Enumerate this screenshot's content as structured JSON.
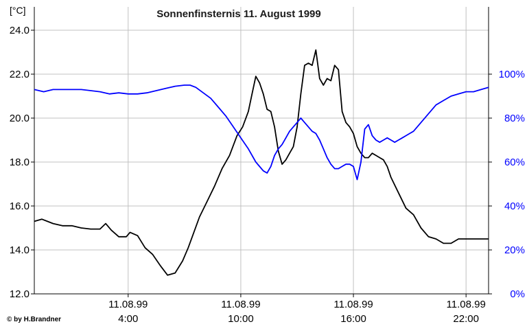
{
  "chart_data": {
    "type": "line",
    "title": "Sonnenfinsternis 11. August 1999",
    "ylabel_left": "[°C]",
    "credit": "© by H.Brandner",
    "x_unit": "hour of day (11.08.99)",
    "xlim": [
      -1,
      23.2
    ],
    "ylim_left": [
      12,
      24
    ],
    "ylim_right": [
      0,
      120
    ],
    "y_ticks_left": [
      "24.0",
      "22.0",
      "20.0",
      "18.0",
      "16.0",
      "14.0",
      "12.0"
    ],
    "y_ticks_right": [
      "100%",
      "80%",
      "60%",
      "40%",
      "20%",
      "0%"
    ],
    "x_ticks": [
      {
        "x": 4,
        "date": "11.08.99",
        "time": "4:00"
      },
      {
        "x": 10,
        "date": "11.08.99",
        "time": "10:00"
      },
      {
        "x": 16,
        "date": "11.08.99",
        "time": "16:00"
      },
      {
        "x": 22,
        "date": "11.08.99",
        "time": "22:00"
      }
    ],
    "grid": true,
    "colors": {
      "temperature": "#000000",
      "humidity": "#0000ff",
      "grid": "#c0c0c0"
    },
    "series": [
      {
        "axis": "left",
        "color": "#000000",
        "x": [
          -1,
          -0.6,
          -0.3,
          0,
          0.5,
          1,
          1.5,
          2,
          2.5,
          2.8,
          3.1,
          3.5,
          3.9,
          4.1,
          4.5,
          4.9,
          5.3,
          5.7,
          6.1,
          6.5,
          6.9,
          7.2,
          7.5,
          7.8,
          8.2,
          8.6,
          9,
          9.4,
          9.8,
          10.1,
          10.4,
          10.6,
          10.8,
          11,
          11.2,
          11.4,
          11.6,
          11.8,
          12,
          12.2,
          12.4,
          12.6,
          12.8,
          13,
          13.2,
          13.4,
          13.6,
          13.8,
          14,
          14.2,
          14.4,
          14.6,
          14.8,
          15,
          15.2,
          15.4,
          15.6,
          15.8,
          16,
          16.2,
          16.4,
          16.6,
          16.8,
          17,
          17.2,
          17.4,
          17.6,
          17.8,
          18,
          18.4,
          18.8,
          19.2,
          19.6,
          20,
          20.4,
          20.8,
          21.2,
          21.6,
          22,
          22.4,
          22.8,
          23.2
        ],
        "y": [
          15.3,
          15.4,
          15.3,
          15.2,
          15.1,
          15.1,
          15.0,
          14.95,
          14.95,
          15.2,
          14.9,
          14.6,
          14.6,
          14.8,
          14.65,
          14.1,
          13.8,
          13.3,
          12.85,
          12.95,
          13.5,
          14.1,
          14.8,
          15.5,
          16.2,
          16.9,
          17.7,
          18.3,
          19.2,
          19.6,
          20.3,
          21.1,
          21.9,
          21.6,
          21.1,
          20.4,
          20.3,
          19.6,
          18.5,
          17.9,
          18.1,
          18.4,
          18.7,
          19.6,
          21.1,
          22.4,
          22.5,
          22.4,
          23.1,
          21.8,
          21.5,
          21.8,
          21.7,
          22.4,
          22.2,
          20.3,
          19.8,
          19.6,
          19.3,
          18.7,
          18.4,
          18.2,
          18.2,
          18.4,
          18.3,
          18.2,
          18.1,
          17.8,
          17.3,
          16.6,
          15.9,
          15.6,
          15.0,
          14.6,
          14.5,
          14.3,
          14.3,
          14.5,
          14.5,
          14.5,
          14.5,
          14.5
        ]
      },
      {
        "axis": "right",
        "color": "#0000ff",
        "x": [
          -1,
          -0.5,
          0,
          0.5,
          1,
          1.5,
          2,
          2.5,
          3,
          3.5,
          4,
          4.5,
          5,
          5.5,
          6,
          6.5,
          7,
          7.3,
          7.6,
          8,
          8.4,
          8.8,
          9.2,
          9.6,
          10,
          10.4,
          10.8,
          11.2,
          11.4,
          11.6,
          11.8,
          12,
          12.2,
          12.4,
          12.6,
          12.8,
          13,
          13.2,
          13.4,
          13.6,
          13.8,
          14,
          14.2,
          14.4,
          14.6,
          14.8,
          15,
          15.2,
          15.4,
          15.6,
          15.8,
          16,
          16.2,
          16.4,
          16.6,
          16.8,
          17,
          17.2,
          17.4,
          17.6,
          17.8,
          18,
          18.2,
          18.4,
          18.6,
          18.8,
          19,
          19.2,
          19.6,
          20,
          20.4,
          20.8,
          21.2,
          21.6,
          22,
          22.4,
          22.8,
          23.2
        ],
        "y": [
          93,
          92,
          93,
          93,
          93,
          93,
          92.5,
          92,
          91,
          91.5,
          91,
          91,
          91.5,
          92.5,
          93.5,
          94.5,
          95,
          95,
          94,
          91.5,
          89,
          85,
          81,
          76,
          71,
          66,
          60,
          56,
          55,
          58,
          63,
          66,
          68,
          71,
          74,
          76,
          78,
          80,
          78,
          76,
          74,
          73,
          70,
          66,
          62,
          59,
          57,
          57,
          58,
          59,
          59,
          58,
          52,
          60,
          75,
          77,
          72,
          70,
          69,
          70,
          71,
          70,
          69,
          70,
          71,
          72,
          73,
          74,
          78,
          82,
          86,
          88,
          90,
          91,
          92,
          92,
          93,
          94
        ]
      }
    ]
  }
}
